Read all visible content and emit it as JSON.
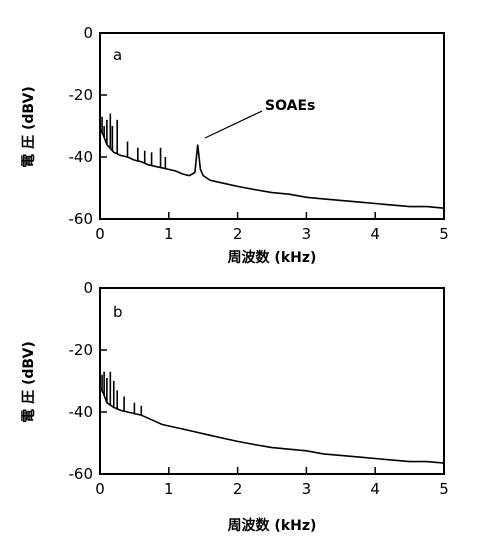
{
  "chart_data": [
    {
      "type": "line",
      "panel_label": "a",
      "xlabel": "周波数 (kHz)",
      "ylabel": "電 圧 (dBV)",
      "xlim": [
        0,
        5
      ],
      "ylim": [
        -60,
        0
      ],
      "xticks": [
        0,
        1,
        2,
        3,
        4,
        5
      ],
      "yticks": [
        0,
        -20,
        -40,
        -60
      ],
      "grid": false,
      "annotation": {
        "text": "SOAEs",
        "x": 1.42,
        "y": -35
      },
      "x": [
        0.0,
        0.05,
        0.1,
        0.2,
        0.3,
        0.4,
        0.5,
        0.6,
        0.7,
        0.8,
        0.9,
        1.0,
        1.1,
        1.2,
        1.3,
        1.38,
        1.42,
        1.46,
        1.5,
        1.6,
        1.8,
        2.0,
        2.25,
        2.5,
        2.75,
        3.0,
        3.25,
        3.5,
        3.75,
        4.0,
        4.25,
        4.5,
        4.75,
        5.0
      ],
      "values": [
        -31,
        -33,
        -36,
        -38.5,
        -39.5,
        -40,
        -41,
        -41.5,
        -42.5,
        -43,
        -43.5,
        -44,
        -44.5,
        -45.5,
        -46,
        -45,
        -36,
        -44,
        -46,
        -47.5,
        -48.5,
        -49.5,
        -50.5,
        -51.5,
        -52,
        -53,
        -53.5,
        -54,
        -54.5,
        -55,
        -55.5,
        -56,
        -56,
        -56.5
      ],
      "spikes": [
        {
          "x": 0.03,
          "y": -27
        },
        {
          "x": 0.06,
          "y": -30
        },
        {
          "x": 0.1,
          "y": -28
        },
        {
          "x": 0.15,
          "y": -26
        },
        {
          "x": 0.18,
          "y": -30
        },
        {
          "x": 0.25,
          "y": -28
        },
        {
          "x": 0.4,
          "y": -35
        },
        {
          "x": 0.55,
          "y": -37
        },
        {
          "x": 0.65,
          "y": -38
        },
        {
          "x": 0.75,
          "y": -38.5
        },
        {
          "x": 0.88,
          "y": -37
        },
        {
          "x": 0.95,
          "y": -40
        }
      ]
    },
    {
      "type": "line",
      "panel_label": "b",
      "xlabel": "周波数 (kHz)",
      "ylabel": "電 圧 (dBV)",
      "xlim": [
        0,
        5
      ],
      "ylim": [
        -60,
        0
      ],
      "xticks": [
        0,
        1,
        2,
        3,
        4,
        5
      ],
      "yticks": [
        0,
        -20,
        -40,
        -60
      ],
      "grid": false,
      "x": [
        0.0,
        0.05,
        0.1,
        0.2,
        0.3,
        0.4,
        0.5,
        0.6,
        0.7,
        0.8,
        0.9,
        1.0,
        1.1,
        1.2,
        1.4,
        1.6,
        1.8,
        2.0,
        2.25,
        2.5,
        2.75,
        3.0,
        3.25,
        3.5,
        3.75,
        4.0,
        4.25,
        4.5,
        4.75,
        5.0
      ],
      "values": [
        -32,
        -34,
        -37,
        -38.5,
        -39.5,
        -40,
        -40.5,
        -41,
        -42,
        -43,
        -44,
        -44.5,
        -45,
        -45.5,
        -46.5,
        -47.5,
        -48.5,
        -49.5,
        -50.5,
        -51.5,
        -52,
        -52.5,
        -53.5,
        -54,
        -54.5,
        -55,
        -55.5,
        -56,
        -56,
        -56.5
      ],
      "spikes": [
        {
          "x": 0.03,
          "y": -28
        },
        {
          "x": 0.06,
          "y": -27
        },
        {
          "x": 0.1,
          "y": -29
        },
        {
          "x": 0.15,
          "y": -27
        },
        {
          "x": 0.2,
          "y": -30
        },
        {
          "x": 0.25,
          "y": -33
        },
        {
          "x": 0.35,
          "y": -35
        },
        {
          "x": 0.5,
          "y": -37
        },
        {
          "x": 0.6,
          "y": -38
        }
      ]
    }
  ]
}
